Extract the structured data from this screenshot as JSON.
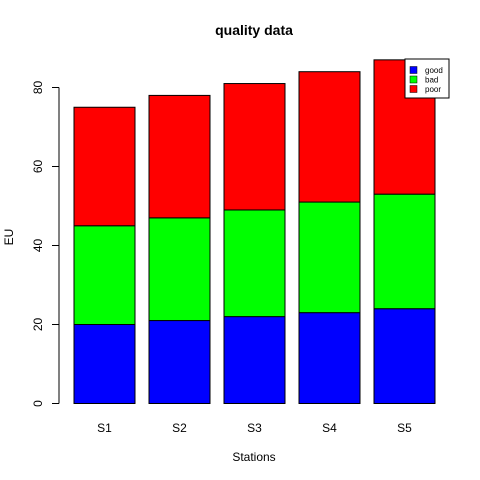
{
  "chart_data": {
    "type": "bar",
    "stacked": true,
    "title": "quality data",
    "xlabel": "Stations",
    "ylabel": "EU",
    "categories": [
      "S1",
      "S2",
      "S3",
      "S4",
      "S5"
    ],
    "ylim": [
      0,
      87
    ],
    "yticks": [
      0,
      20,
      40,
      60,
      80
    ],
    "grid": false,
    "legend_position": "top-right",
    "series": [
      {
        "name": "good",
        "color": "#0000ff",
        "values": [
          20,
          21,
          22,
          23,
          24
        ]
      },
      {
        "name": "bad",
        "color": "#00ff00",
        "values": [
          25,
          26,
          27,
          28,
          29
        ]
      },
      {
        "name": "poor",
        "color": "#ff0000",
        "values": [
          30,
          31,
          32,
          33,
          34
        ]
      }
    ]
  }
}
